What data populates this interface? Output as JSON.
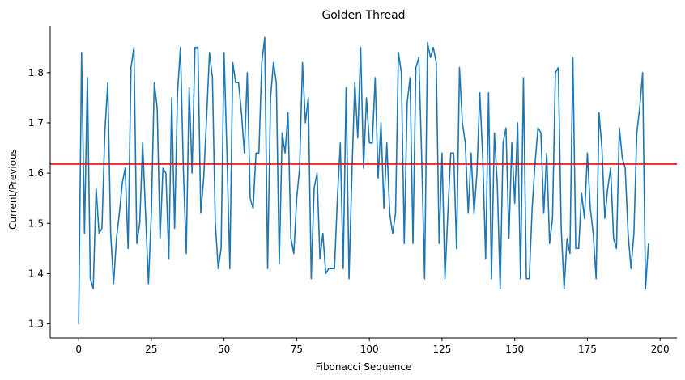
{
  "chart_data": {
    "type": "line",
    "title": "Golden Thread",
    "xlabel": "Fibonacci Sequence",
    "ylabel": "Current/Previous",
    "xlim": [
      -9.8,
      205.8
    ],
    "ylim": [
      1.272,
      1.893
    ],
    "xticks": [
      0,
      25,
      50,
      75,
      100,
      125,
      150,
      175,
      200
    ],
    "yticks": [
      1.3,
      1.4,
      1.5,
      1.6,
      1.7,
      1.8
    ],
    "grid": false,
    "reference_line": {
      "y": 1.618,
      "color": "#ff0000"
    },
    "series": [
      {
        "color": "#1f77b4",
        "values": [
          1.3,
          1.84,
          1.48,
          1.79,
          1.39,
          1.37,
          1.57,
          1.48,
          1.49,
          1.68,
          1.78,
          1.48,
          1.38,
          1.47,
          1.52,
          1.58,
          1.61,
          1.45,
          1.81,
          1.85,
          1.46,
          1.5,
          1.66,
          1.52,
          1.38,
          1.52,
          1.78,
          1.73,
          1.47,
          1.61,
          1.6,
          1.43,
          1.75,
          1.49,
          1.76,
          1.85,
          1.61,
          1.44,
          1.77,
          1.6,
          1.85,
          1.85,
          1.52,
          1.59,
          1.71,
          1.84,
          1.79,
          1.5,
          1.41,
          1.45,
          1.84,
          1.64,
          1.41,
          1.82,
          1.78,
          1.78,
          1.72,
          1.64,
          1.8,
          1.55,
          1.53,
          1.64,
          1.64,
          1.82,
          1.87,
          1.41,
          1.75,
          1.82,
          1.78,
          1.42,
          1.68,
          1.64,
          1.72,
          1.47,
          1.44,
          1.55,
          1.61,
          1.82,
          1.7,
          1.75,
          1.39,
          1.57,
          1.6,
          1.43,
          1.48,
          1.4,
          1.41,
          1.41,
          1.41,
          1.55,
          1.66,
          1.41,
          1.77,
          1.39,
          1.6,
          1.78,
          1.67,
          1.85,
          1.61,
          1.75,
          1.66,
          1.66,
          1.79,
          1.59,
          1.7,
          1.53,
          1.66,
          1.52,
          1.48,
          1.52,
          1.84,
          1.8,
          1.46,
          1.74,
          1.79,
          1.46,
          1.81,
          1.83,
          1.63,
          1.39,
          1.86,
          1.83,
          1.85,
          1.82,
          1.46,
          1.64,
          1.39,
          1.52,
          1.64,
          1.64,
          1.45,
          1.81,
          1.7,
          1.66,
          1.52,
          1.64,
          1.52,
          1.6,
          1.76,
          1.63,
          1.43,
          1.76,
          1.39,
          1.68,
          1.58,
          1.37,
          1.66,
          1.69,
          1.47,
          1.66,
          1.54,
          1.7,
          1.39,
          1.79,
          1.39,
          1.39,
          1.53,
          1.62,
          1.69,
          1.68,
          1.52,
          1.64,
          1.46,
          1.51,
          1.8,
          1.81,
          1.49,
          1.37,
          1.47,
          1.44,
          1.83,
          1.45,
          1.45,
          1.56,
          1.51,
          1.64,
          1.53,
          1.48,
          1.39,
          1.72,
          1.65,
          1.51,
          1.57,
          1.61,
          1.47,
          1.45,
          1.69,
          1.63,
          1.61,
          1.48,
          1.41,
          1.48,
          1.68,
          1.73,
          1.8,
          1.37,
          1.46
        ]
      }
    ]
  }
}
